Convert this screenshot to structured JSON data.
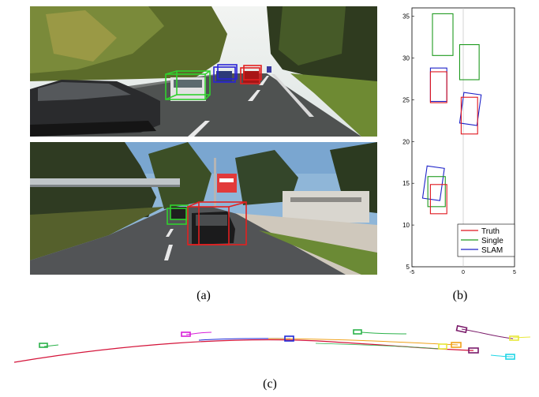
{
  "captions": {
    "a": "(a)",
    "b": "(b)",
    "c": "(c)"
  },
  "colors": {
    "truth": "#e0161d",
    "single": "#1e9a1e",
    "slam": "#1d22c8"
  },
  "photo_top": {
    "boxes": [
      {
        "name": "car-box-green",
        "color": "#31d02e"
      },
      {
        "name": "car-box-blue",
        "color": "#2a24d6"
      },
      {
        "name": "car-box-red",
        "color": "#e32020"
      }
    ]
  },
  "photo_bottom": {
    "boxes": [
      {
        "name": "car-box-green",
        "color": "#31d02e"
      },
      {
        "name": "car-box-red",
        "color": "#e32020"
      }
    ]
  },
  "chart_data": {
    "type": "scatter",
    "xlim": [
      -5,
      5
    ],
    "ylim": [
      5,
      36
    ],
    "xticks": [
      "-5",
      "0",
      "5"
    ],
    "yticks": [
      "5",
      "10",
      "15",
      "20",
      "25",
      "30",
      "35"
    ],
    "legend_position": "bottom-right",
    "legend": [
      {
        "label": "Truth",
        "color": "#e0161d"
      },
      {
        "label": "Single",
        "color": "#1e9a1e"
      },
      {
        "label": "SLAM",
        "color": "#1d22c8"
      }
    ],
    "rects": [
      {
        "series": "Single",
        "cx": -2.0,
        "cy": 32.8,
        "w": 2.0,
        "h": 5.0,
        "angle": 0
      },
      {
        "series": "Single",
        "cx": 0.6,
        "cy": 29.5,
        "w": 1.9,
        "h": 4.2,
        "angle": 0
      },
      {
        "series": "SLAM",
        "cx": -2.4,
        "cy": 26.8,
        "w": 1.6,
        "h": 4.0,
        "angle": 0
      },
      {
        "series": "Truth",
        "cx": -2.4,
        "cy": 26.5,
        "w": 1.6,
        "h": 3.7,
        "angle": 0
      },
      {
        "series": "SLAM",
        "cx": 0.7,
        "cy": 23.9,
        "w": 1.7,
        "h": 3.7,
        "angle": 8
      },
      {
        "series": "Truth",
        "cx": 0.6,
        "cy": 23.1,
        "w": 1.6,
        "h": 4.4,
        "angle": 0
      },
      {
        "series": "SLAM",
        "cx": -2.9,
        "cy": 15.0,
        "w": 1.7,
        "h": 3.9,
        "angle": 8
      },
      {
        "series": "Single",
        "cx": -2.6,
        "cy": 14.0,
        "w": 1.7,
        "h": 3.6,
        "angle": 0
      },
      {
        "series": "Truth",
        "cx": -2.4,
        "cy": 13.1,
        "w": 1.6,
        "h": 3.5,
        "angle": 0
      }
    ]
  },
  "trajectories": [
    {
      "name": "trajectory-red",
      "color": "#d4143a"
    },
    {
      "name": "trajectory-blue",
      "color": "#1e2ad8"
    },
    {
      "name": "trajectory-orange",
      "color": "#f0a21a"
    },
    {
      "name": "trajectory-green",
      "color": "#2bb24a"
    },
    {
      "name": "trajectory-purple",
      "color": "#7a1a6a"
    },
    {
      "name": "trajectory-magenta",
      "color": "#d81fd8"
    },
    {
      "name": "trajectory-yellow",
      "color": "#e8e83a"
    },
    {
      "name": "trajectory-cyan",
      "color": "#1fd6e6"
    }
  ]
}
